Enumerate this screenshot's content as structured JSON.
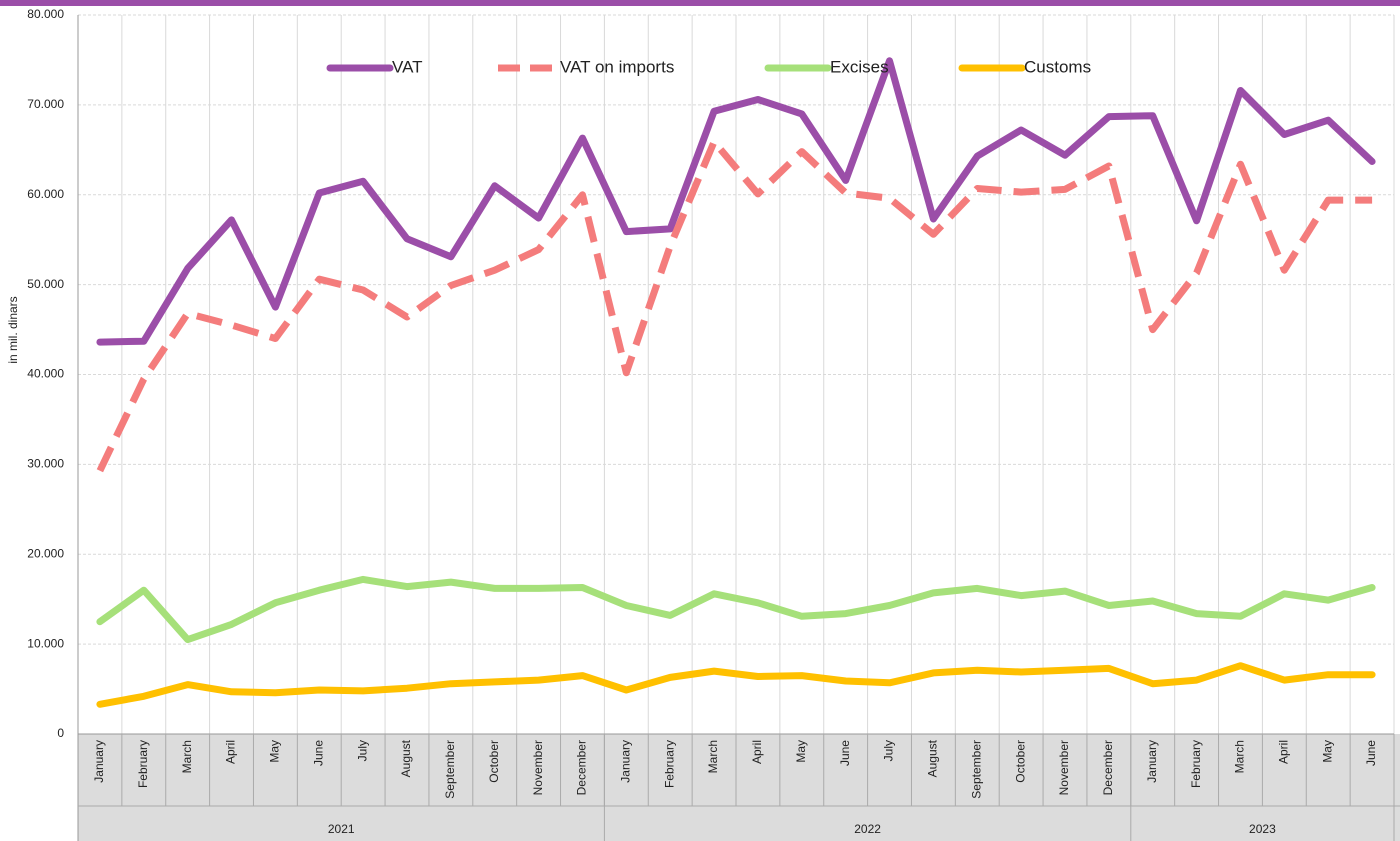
{
  "chart_data": {
    "type": "line",
    "ylabel": "in mil. dinars",
    "categories": [
      "January",
      "February",
      "March",
      "April",
      "May",
      "June",
      "July",
      "August",
      "September",
      "October",
      "November",
      "December",
      "January",
      "February",
      "March",
      "April",
      "May",
      "June",
      "July",
      "August",
      "September",
      "October",
      "November",
      "December",
      "January",
      "February",
      "March",
      "April",
      "May",
      "June"
    ],
    "groups": [
      {
        "label": "2021",
        "size": 12
      },
      {
        "label": "2022",
        "size": 12
      },
      {
        "label": "2023",
        "size": 6
      }
    ],
    "series": [
      {
        "name": "VAT",
        "color": "#9b4ea8",
        "dash": false,
        "values": [
          43600,
          43700,
          51800,
          57200,
          47500,
          60200,
          61500,
          55100,
          53100,
          61000,
          57400,
          66300,
          55900,
          56200,
          69300,
          70600,
          69000,
          61600,
          74900,
          57300,
          64300,
          67200,
          64400,
          68700,
          68800,
          57100,
          71600,
          66700,
          68300,
          63700
        ]
      },
      {
        "name": "VAT on imports",
        "color": "#f47c7c",
        "dash": true,
        "values": [
          29300,
          39500,
          46800,
          45500,
          44000,
          50600,
          49400,
          46400,
          49900,
          51600,
          53900,
          60000,
          40200,
          54300,
          65900,
          60100,
          64800,
          60200,
          59600,
          55600,
          60700,
          60300,
          60600,
          63200,
          45000,
          51300,
          63400,
          51600,
          59400,
          59400
        ]
      },
      {
        "name": "Excises",
        "color": "#a6e07a",
        "dash": false,
        "values": [
          12500,
          16000,
          10500,
          12200,
          14600,
          16000,
          17200,
          16400,
          16900,
          16200,
          16200,
          16300,
          14300,
          13200,
          15600,
          14600,
          13100,
          13400,
          14300,
          15700,
          16200,
          15400,
          15900,
          14300,
          14800,
          13400,
          13100,
          15600,
          14900,
          16300
        ]
      },
      {
        "name": "Customs",
        "color": "#ffc000",
        "dash": false,
        "values": [
          3300,
          4200,
          5500,
          4700,
          4600,
          4900,
          4800,
          5100,
          5600,
          5800,
          6000,
          6500,
          4900,
          6300,
          7000,
          6400,
          6500,
          5900,
          5700,
          6800,
          7100,
          6900,
          7100,
          7300,
          5600,
          6000,
          7600,
          6000,
          6600,
          6600
        ]
      }
    ],
    "ylim": [
      0,
      80000
    ],
    "yticks": [
      0,
      {
        "value": 10000,
        "label": "10.000"
      },
      {
        "value": 20000,
        "label": "20.000"
      },
      {
        "value": 30000,
        "label": "30.000"
      },
      {
        "value": 40000,
        "label": "40.000"
      },
      {
        "value": 50000,
        "label": "50.000"
      },
      {
        "value": 60000,
        "label": "60.000"
      },
      {
        "value": 70000,
        "label": "70.000"
      },
      {
        "value": 80000,
        "label": "80.000"
      }
    ],
    "grid": true,
    "legend": "top"
  }
}
